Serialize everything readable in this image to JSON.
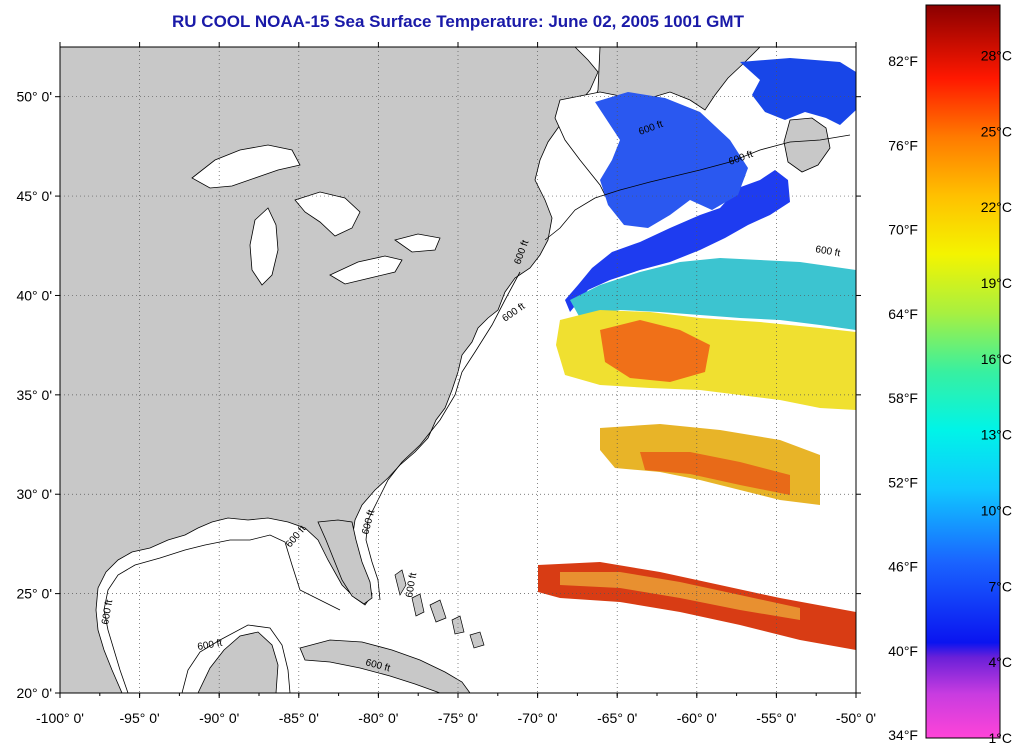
{
  "title": "RU COOL  NOAA-15  Sea Surface Temperature:  June 02, 2005 1001 GMT",
  "map": {
    "lon_range": [
      -100,
      -50
    ],
    "lat_range": [
      20,
      52.5
    ],
    "lat_ticks": [
      {
        "value": 50,
        "label": "50° 0'"
      },
      {
        "value": 45,
        "label": "45° 0'"
      },
      {
        "value": 40,
        "label": "40° 0'"
      },
      {
        "value": 35,
        "label": "35° 0'"
      },
      {
        "value": 30,
        "label": "30° 0'"
      },
      {
        "value": 25,
        "label": "25° 0'"
      },
      {
        "value": 20,
        "label": "20° 0'"
      }
    ],
    "lon_ticks": [
      {
        "value": -100,
        "label": "-100° 0'"
      },
      {
        "value": -95,
        "label": "-95° 0'"
      },
      {
        "value": -90,
        "label": "-90° 0'"
      },
      {
        "value": -85,
        "label": "-85° 0'"
      },
      {
        "value": -80,
        "label": "-80° 0'"
      },
      {
        "value": -75,
        "label": "-75° 0'"
      },
      {
        "value": -70,
        "label": "-70° 0'"
      },
      {
        "value": -65,
        "label": "-65° 0'"
      },
      {
        "value": -60,
        "label": "-60° 0'"
      },
      {
        "value": -55,
        "label": "-55° 0'"
      },
      {
        "value": -50,
        "label": "-50° 0'"
      }
    ],
    "contour_labels": [
      "600 ft",
      "600 ft",
      "600 ft",
      "600 ft",
      "600 ft",
      "600 ft",
      "600 ft",
      "600 ft",
      "600 ft",
      "600 ft",
      "600 ft"
    ],
    "land_color": "#c8c8c8",
    "grid": true
  },
  "colorbar": {
    "range_c": [
      1,
      30
    ],
    "fahrenheit_labels": [
      "82°F",
      "76°F",
      "70°F",
      "64°F",
      "58°F",
      "52°F",
      "46°F",
      "40°F",
      "34°F"
    ],
    "celsius_labels": [
      "28°C",
      "25°C",
      "22°C",
      "19°C",
      "16°C",
      "13°C",
      "10°C",
      "7°C",
      "4°C",
      "1°C"
    ],
    "celsius_values": [
      28,
      25,
      22,
      19,
      16,
      13,
      10,
      7,
      4,
      1
    ],
    "fahrenheit_values": [
      82,
      76,
      70,
      64,
      58,
      52,
      46,
      40,
      34
    ]
  }
}
